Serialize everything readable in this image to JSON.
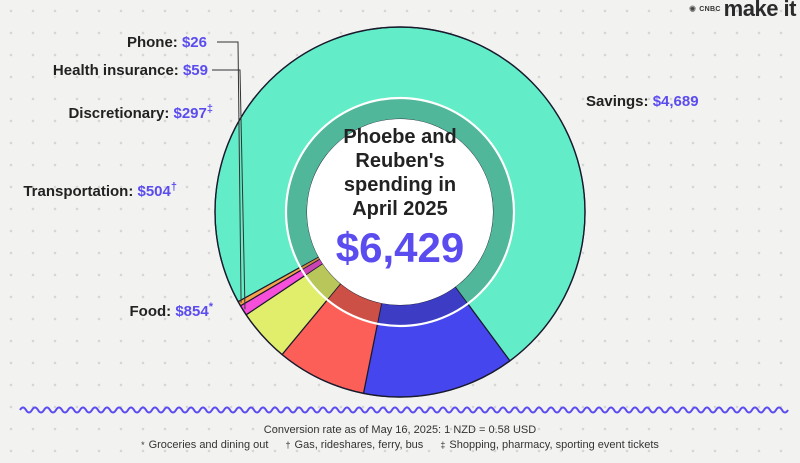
{
  "brand": {
    "network": "CNBC",
    "name": "make it"
  },
  "chart_data": {
    "type": "pie",
    "subtype": "donut",
    "title_lines": [
      "Phoebe and",
      "Reuben's",
      "spending in",
      "April 2025"
    ],
    "total_label": "$6,429",
    "total": 6429,
    "slices": [
      {
        "name": "Savings",
        "label": "Savings:",
        "value": 4689,
        "value_label": "$4,689",
        "mark": "",
        "color": "#62ecc7",
        "inner_color": "#50b79a"
      },
      {
        "name": "Food",
        "label": "Food:",
        "value": 854,
        "value_label": "$854",
        "mark": "*",
        "color": "#4646ee",
        "inner_color": "#3c3cc4"
      },
      {
        "name": "Transportation",
        "label": "Transportation:",
        "value": 504,
        "value_label": "$504",
        "mark": "†",
        "color": "#fc5f58",
        "inner_color": "#cc5046"
      },
      {
        "name": "Discretionary",
        "label": "Discretionary:",
        "value": 297,
        "value_label": "$297",
        "mark": "‡",
        "color": "#e1ee6c",
        "inner_color": "#b9c65a"
      },
      {
        "name": "Health insurance",
        "label": "Health insurance:",
        "value": 59,
        "value_label": "$59",
        "mark": "",
        "color": "#f64fd9",
        "inner_color": "#cc44b4"
      },
      {
        "name": "Phone",
        "label": "Phone:",
        "value": 26,
        "value_label": "$26",
        "mark": "",
        "color": "#f6a24a",
        "inner_color": "#cf8a40"
      }
    ],
    "value_color": "#5b4cf0"
  },
  "footer": {
    "conversion": "Conversion rate as of May 16, 2025: 1 NZD = 0.58 USD",
    "notes": [
      {
        "symbol": "*",
        "text": "Groceries and dining out"
      },
      {
        "symbol": "†",
        "text": "Gas, rideshares, ferry, bus"
      },
      {
        "symbol": "‡",
        "text": "Shopping, pharmacy, sporting event tickets"
      }
    ]
  }
}
